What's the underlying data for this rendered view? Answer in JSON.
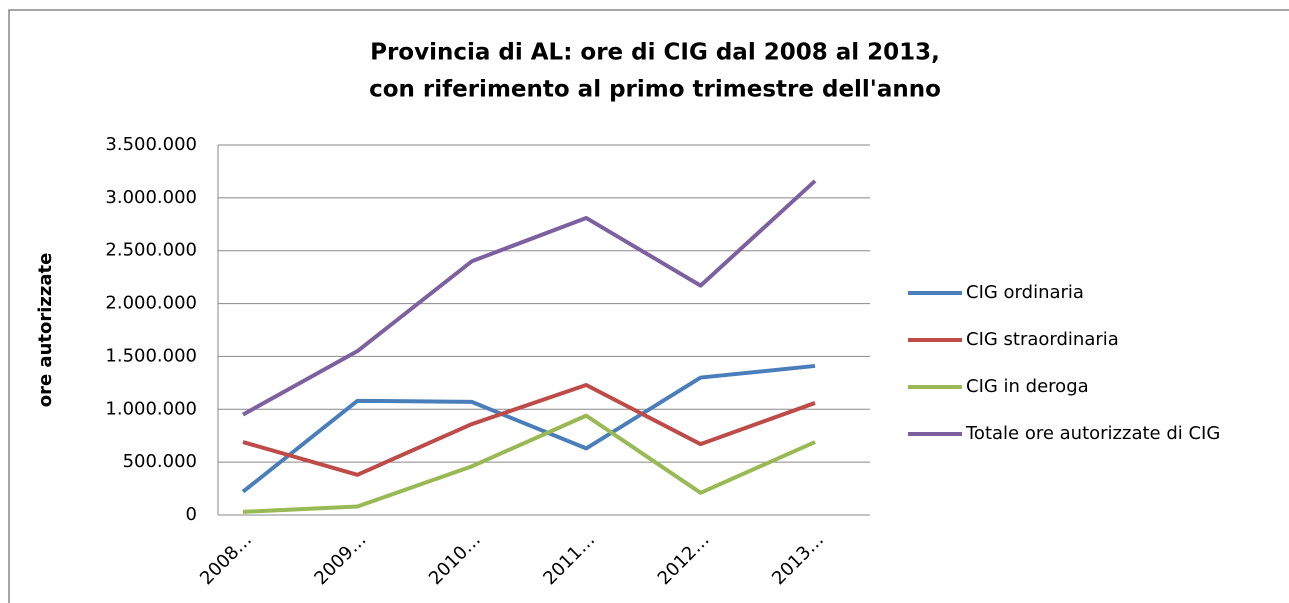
{
  "chart_data": {
    "type": "line",
    "title": [
      "Provincia di AL: ore di CIG dal 2008 al 2013,",
      "con riferimento al primo trimestre dell'anno"
    ],
    "y_label": "ore autorizzate",
    "categories": [
      "2008…",
      "2009…",
      "2010…",
      "2011…",
      "2012…",
      "2013…"
    ],
    "series": [
      {
        "name": "CIG ordinaria",
        "color": "#4a7ebb",
        "values": [
          220000,
          1080000,
          1070000,
          630000,
          1300000,
          1410000
        ]
      },
      {
        "name": "CIG straordinaria",
        "color": "#be4b48",
        "values": [
          690000,
          380000,
          860000,
          1230000,
          670000,
          1060000
        ]
      },
      {
        "name": "CIG in deroga",
        "color": "#98b954",
        "values": [
          30000,
          80000,
          460000,
          940000,
          210000,
          690000
        ]
      },
      {
        "name": "Totale ore autorizzate di CIG",
        "color": "#7d60a0",
        "values": [
          950000,
          1550000,
          2400000,
          2810000,
          2170000,
          3160000
        ]
      }
    ],
    "ylim": [
      0,
      3500000
    ],
    "yticks": [
      0,
      {
        "value": 500000,
        "label": "500.000"
      },
      {
        "value": 1000000,
        "label": "1.000.000"
      },
      {
        "value": 1500000,
        "label": "1.500.000"
      },
      {
        "value": 2000000,
        "label": "2.000.000"
      },
      {
        "value": 2500000,
        "label": "2.500.000"
      },
      {
        "value": 3000000,
        "label": "3.000.000"
      },
      {
        "value": 3500000,
        "label": "3.500.000"
      }
    ],
    "grid": true,
    "legend": "right"
  }
}
